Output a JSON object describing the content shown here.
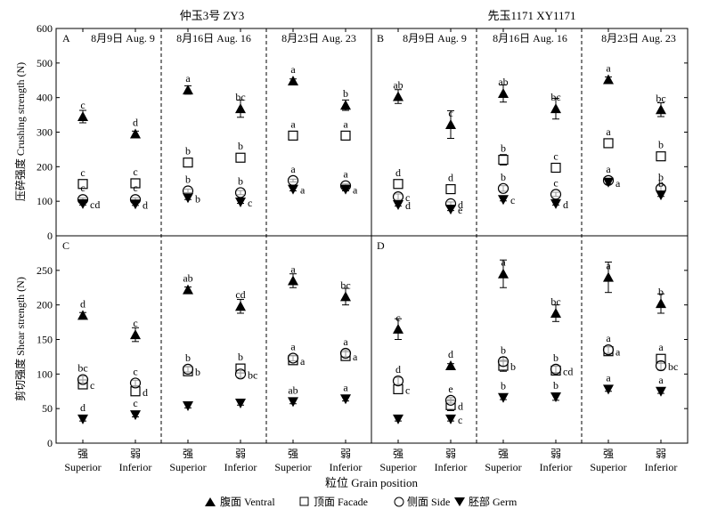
{
  "variety_titles": [
    "仲玉3号 ZY3",
    "先玉1171 XY1171"
  ],
  "date_titles": [
    "8月9日 Aug. 9",
    "8月16日 Aug. 16",
    "8月23日 Aug. 23",
    "8月9日 Aug. 9",
    "8月16日 Aug. 16",
    "8月23日 Aug. 23"
  ],
  "panel_letters": [
    "A",
    "B",
    "C",
    "D"
  ],
  "x_tick_labels": [
    {
      "cn": "强",
      "en": "Superior"
    },
    {
      "cn": "弱",
      "en": "Inferior"
    }
  ],
  "xlabel": "粒位 Grain position",
  "legend": [
    {
      "label": "腹面 Ventral",
      "marker": "triangle-up"
    },
    {
      "label": "顶面 Facade",
      "marker": "square"
    },
    {
      "label": "侧面 Side",
      "marker": "circle"
    },
    {
      "label": "胚部 Germ",
      "marker": "triangle-down"
    }
  ],
  "chart_data": [
    {
      "type": "scatter",
      "ylabel": "压碎强度 Crushing strength (N)",
      "ylim": [
        0,
        600
      ],
      "yticks": [
        0,
        100,
        200,
        300,
        400,
        500,
        600
      ],
      "points": [
        {
          "g": 0,
          "x": 0,
          "s": "v",
          "y": 345,
          "e": 18,
          "l": "c",
          "lp": "above"
        },
        {
          "g": 0,
          "x": 0,
          "s": "f",
          "y": 150,
          "e": 8,
          "l": "c",
          "lp": "above"
        },
        {
          "g": 0,
          "x": 0,
          "s": "s",
          "y": 105,
          "e": 5,
          "l": "c",
          "lp": "above"
        },
        {
          "g": 0,
          "x": 0,
          "s": "g",
          "y": 93,
          "e": 4,
          "l": "cd",
          "lp": "right"
        },
        {
          "g": 0,
          "x": 1,
          "s": "v",
          "y": 295,
          "e": 8,
          "l": "d",
          "lp": "above"
        },
        {
          "g": 0,
          "x": 1,
          "s": "f",
          "y": 152,
          "e": 6,
          "l": "c",
          "lp": "above"
        },
        {
          "g": 0,
          "x": 1,
          "s": "s",
          "y": 105,
          "e": 5,
          "l": "c",
          "lp": "above"
        },
        {
          "g": 0,
          "x": 1,
          "s": "g",
          "y": 92,
          "e": 4,
          "l": "d",
          "lp": "right"
        },
        {
          "g": 1,
          "x": 0,
          "s": "v",
          "y": 422,
          "e": 12,
          "l": "a",
          "lp": "above"
        },
        {
          "g": 1,
          "x": 0,
          "s": "f",
          "y": 212,
          "e": 6,
          "l": "b",
          "lp": "above"
        },
        {
          "g": 1,
          "x": 0,
          "s": "s",
          "y": 130,
          "e": 5,
          "l": "b",
          "lp": "above"
        },
        {
          "g": 1,
          "x": 0,
          "s": "g",
          "y": 110,
          "e": 5,
          "l": "b",
          "lp": "right"
        },
        {
          "g": 1,
          "x": 1,
          "s": "v",
          "y": 368,
          "e": 25,
          "l": "bc",
          "lp": "above"
        },
        {
          "g": 1,
          "x": 1,
          "s": "f",
          "y": 226,
          "e": 6,
          "l": "b",
          "lp": "above"
        },
        {
          "g": 1,
          "x": 1,
          "s": "s",
          "y": 125,
          "e": 6,
          "l": "b",
          "lp": "above"
        },
        {
          "g": 1,
          "x": 1,
          "s": "g",
          "y": 98,
          "e": 4,
          "l": "c",
          "lp": "right"
        },
        {
          "g": 2,
          "x": 0,
          "s": "v",
          "y": 448,
          "e": 6,
          "l": "a",
          "lp": "above"
        },
        {
          "g": 2,
          "x": 0,
          "s": "f",
          "y": 290,
          "e": 10,
          "l": "a",
          "lp": "above"
        },
        {
          "g": 2,
          "x": 0,
          "s": "s",
          "y": 160,
          "e": 4,
          "l": "a",
          "lp": "above"
        },
        {
          "g": 2,
          "x": 0,
          "s": "g",
          "y": 135,
          "e": 5,
          "l": "a",
          "lp": "right"
        },
        {
          "g": 2,
          "x": 1,
          "s": "v",
          "y": 378,
          "e": 15,
          "l": "b",
          "lp": "above"
        },
        {
          "g": 2,
          "x": 1,
          "s": "f",
          "y": 290,
          "e": 8,
          "l": "a",
          "lp": "above"
        },
        {
          "g": 2,
          "x": 1,
          "s": "s",
          "y": 145,
          "e": 5,
          "l": "a",
          "lp": "above"
        },
        {
          "g": 2,
          "x": 1,
          "s": "g",
          "y": 135,
          "e": 5,
          "l": "a",
          "lp": "right"
        },
        {
          "g": 3,
          "x": 0,
          "s": "v",
          "y": 403,
          "e": 20,
          "l": "ab",
          "lp": "above"
        },
        {
          "g": 3,
          "x": 0,
          "s": "f",
          "y": 150,
          "e": 8,
          "l": "d",
          "lp": "above"
        },
        {
          "g": 3,
          "x": 0,
          "s": "s",
          "y": 113,
          "e": 8,
          "l": "c",
          "lp": "right"
        },
        {
          "g": 3,
          "x": 0,
          "s": "g",
          "y": 90,
          "e": 4,
          "l": "d",
          "lp": "right"
        },
        {
          "g": 3,
          "x": 1,
          "s": "v",
          "y": 322,
          "e": 40,
          "l": "c",
          "lp": "above"
        },
        {
          "g": 3,
          "x": 1,
          "s": "f",
          "y": 135,
          "e": 10,
          "l": "d",
          "lp": "above"
        },
        {
          "g": 3,
          "x": 1,
          "s": "s",
          "y": 93,
          "e": 5,
          "l": "d",
          "lp": "right"
        },
        {
          "g": 3,
          "x": 1,
          "s": "g",
          "y": 77,
          "e": 4,
          "l": "e",
          "lp": "right"
        },
        {
          "g": 4,
          "x": 0,
          "s": "v",
          "y": 412,
          "e": 25,
          "l": "ab",
          "lp": "above"
        },
        {
          "g": 4,
          "x": 0,
          "s": "f",
          "y": 220,
          "e": 15,
          "l": "b",
          "lp": "above"
        },
        {
          "g": 4,
          "x": 0,
          "s": "s",
          "y": 137,
          "e": 8,
          "l": "b",
          "lp": "above"
        },
        {
          "g": 4,
          "x": 0,
          "s": "g",
          "y": 105,
          "e": 4,
          "l": "c",
          "lp": "right"
        },
        {
          "g": 4,
          "x": 1,
          "s": "v",
          "y": 368,
          "e": 30,
          "l": "bc",
          "lp": "above"
        },
        {
          "g": 4,
          "x": 1,
          "s": "f",
          "y": 197,
          "e": 6,
          "l": "c",
          "lp": "above"
        },
        {
          "g": 4,
          "x": 1,
          "s": "s",
          "y": 120,
          "e": 6,
          "l": "c",
          "lp": "above"
        },
        {
          "g": 4,
          "x": 1,
          "s": "g",
          "y": 93,
          "e": 4,
          "l": "d",
          "lp": "right"
        },
        {
          "g": 5,
          "x": 0,
          "s": "v",
          "y": 452,
          "e": 8,
          "l": "a",
          "lp": "above"
        },
        {
          "g": 5,
          "x": 0,
          "s": "f",
          "y": 268,
          "e": 10,
          "l": "a",
          "lp": "above"
        },
        {
          "g": 5,
          "x": 0,
          "s": "s",
          "y": 160,
          "e": 5,
          "l": "a",
          "lp": "above"
        },
        {
          "g": 5,
          "x": 0,
          "s": "g",
          "y": 155,
          "e": 5,
          "l": "a",
          "lp": "right"
        },
        {
          "g": 5,
          "x": 1,
          "s": "v",
          "y": 365,
          "e": 20,
          "l": "bc",
          "lp": "above"
        },
        {
          "g": 5,
          "x": 1,
          "s": "f",
          "y": 230,
          "e": 8,
          "l": "b",
          "lp": "above"
        },
        {
          "g": 5,
          "x": 1,
          "s": "s",
          "y": 137,
          "e": 8,
          "l": "b",
          "lp": "above"
        },
        {
          "g": 5,
          "x": 1,
          "s": "g",
          "y": 118,
          "e": 4,
          "l": "b",
          "lp": "above"
        }
      ]
    },
    {
      "type": "scatter",
      "ylabel": "剪切强度 Shear strength (N)",
      "ylim": [
        0,
        300
      ],
      "yticks": [
        0,
        50,
        100,
        150,
        200,
        250,
        300
      ],
      "points": [
        {
          "g": 0,
          "x": 0,
          "s": "v",
          "y": 185,
          "e": 4,
          "l": "d",
          "lp": "above"
        },
        {
          "g": 0,
          "x": 0,
          "s": "f",
          "y": 85,
          "e": 6,
          "l": "c",
          "lp": "right"
        },
        {
          "g": 0,
          "x": 0,
          "s": "s",
          "y": 92,
          "e": 5,
          "l": "bc",
          "lp": "above"
        },
        {
          "g": 0,
          "x": 0,
          "s": "g",
          "y": 35,
          "e": 3,
          "l": "d",
          "lp": "above"
        },
        {
          "g": 0,
          "x": 1,
          "s": "v",
          "y": 157,
          "e": 10,
          "l": "c",
          "lp": "above"
        },
        {
          "g": 0,
          "x": 1,
          "s": "f",
          "y": 75,
          "e": 5,
          "l": "d",
          "lp": "right"
        },
        {
          "g": 0,
          "x": 1,
          "s": "s",
          "y": 87,
          "e": 4,
          "l": "c",
          "lp": "above"
        },
        {
          "g": 0,
          "x": 1,
          "s": "g",
          "y": 41,
          "e": 3,
          "l": "c",
          "lp": "above"
        },
        {
          "g": 1,
          "x": 0,
          "s": "v",
          "y": 222,
          "e": 4,
          "l": "ab",
          "lp": "above"
        },
        {
          "g": 1,
          "x": 0,
          "s": "f",
          "y": 104,
          "e": 4,
          "l": "b",
          "lp": "right"
        },
        {
          "g": 1,
          "x": 0,
          "s": "s",
          "y": 107,
          "e": 4,
          "l": "b",
          "lp": "above"
        },
        {
          "g": 1,
          "x": 0,
          "s": "g",
          "y": 54,
          "e": 3,
          "l": "",
          "lp": "above"
        },
        {
          "g": 1,
          "x": 1,
          "s": "v",
          "y": 198,
          "e": 10,
          "l": "cd",
          "lp": "above"
        },
        {
          "g": 1,
          "x": 1,
          "s": "f",
          "y": 108,
          "e": 5,
          "l": "b",
          "lp": "above"
        },
        {
          "g": 1,
          "x": 1,
          "s": "s",
          "y": 100,
          "e": 5,
          "l": "bc",
          "lp": "right"
        },
        {
          "g": 1,
          "x": 1,
          "s": "g",
          "y": 58,
          "e": 3,
          "l": "",
          "lp": "above"
        },
        {
          "g": 2,
          "x": 0,
          "s": "v",
          "y": 235,
          "e": 10,
          "l": "a",
          "lp": "above"
        },
        {
          "g": 2,
          "x": 0,
          "s": "f",
          "y": 120,
          "e": 4,
          "l": "a",
          "lp": "right"
        },
        {
          "g": 2,
          "x": 0,
          "s": "s",
          "y": 123,
          "e": 4,
          "l": "a",
          "lp": "above"
        },
        {
          "g": 2,
          "x": 0,
          "s": "g",
          "y": 60,
          "e": 3,
          "l": "ab",
          "lp": "above"
        },
        {
          "g": 2,
          "x": 1,
          "s": "v",
          "y": 212,
          "e": 12,
          "l": "bc",
          "lp": "above"
        },
        {
          "g": 2,
          "x": 1,
          "s": "f",
          "y": 126,
          "e": 5,
          "l": "a",
          "lp": "right"
        },
        {
          "g": 2,
          "x": 1,
          "s": "s",
          "y": 130,
          "e": 5,
          "l": "a",
          "lp": "above"
        },
        {
          "g": 2,
          "x": 1,
          "s": "g",
          "y": 64,
          "e": 3,
          "l": "a",
          "lp": "above"
        },
        {
          "g": 3,
          "x": 0,
          "s": "v",
          "y": 165,
          "e": 15,
          "l": "c",
          "lp": "above"
        },
        {
          "g": 3,
          "x": 0,
          "s": "f",
          "y": 78,
          "e": 5,
          "l": "c",
          "lp": "right"
        },
        {
          "g": 3,
          "x": 0,
          "s": "s",
          "y": 90,
          "e": 5,
          "l": "d",
          "lp": "above"
        },
        {
          "g": 3,
          "x": 0,
          "s": "g",
          "y": 35,
          "e": 3,
          "l": "",
          "lp": "above"
        },
        {
          "g": 3,
          "x": 1,
          "s": "v",
          "y": 112,
          "e": 3,
          "l": "d",
          "lp": "above"
        },
        {
          "g": 3,
          "x": 1,
          "s": "f",
          "y": 55,
          "e": 8,
          "l": "d",
          "lp": "right"
        },
        {
          "g": 3,
          "x": 1,
          "s": "s",
          "y": 62,
          "e": 4,
          "l": "e",
          "lp": "above"
        },
        {
          "g": 3,
          "x": 1,
          "s": "g",
          "y": 35,
          "e": 3,
          "l": "c",
          "lp": "right"
        },
        {
          "g": 4,
          "x": 0,
          "s": "v",
          "y": 245,
          "e": 20,
          "l": "a",
          "lp": "above"
        },
        {
          "g": 4,
          "x": 0,
          "s": "f",
          "y": 112,
          "e": 8,
          "l": "b",
          "lp": "right"
        },
        {
          "g": 4,
          "x": 0,
          "s": "s",
          "y": 118,
          "e": 6,
          "l": "b",
          "lp": "above"
        },
        {
          "g": 4,
          "x": 0,
          "s": "g",
          "y": 66,
          "e": 3,
          "l": "b",
          "lp": "above"
        },
        {
          "g": 4,
          "x": 1,
          "s": "v",
          "y": 188,
          "e": 12,
          "l": "bc",
          "lp": "above"
        },
        {
          "g": 4,
          "x": 1,
          "s": "f",
          "y": 105,
          "e": 5,
          "l": "cd",
          "lp": "right"
        },
        {
          "g": 4,
          "x": 1,
          "s": "s",
          "y": 107,
          "e": 5,
          "l": "b",
          "lp": "above"
        },
        {
          "g": 4,
          "x": 1,
          "s": "g",
          "y": 67,
          "e": 5,
          "l": "b",
          "lp": "above"
        },
        {
          "g": 5,
          "x": 0,
          "s": "v",
          "y": 240,
          "e": 22,
          "l": "a",
          "lp": "above"
        },
        {
          "g": 5,
          "x": 0,
          "s": "f",
          "y": 133,
          "e": 6,
          "l": "a",
          "lp": "right"
        },
        {
          "g": 5,
          "x": 0,
          "s": "s",
          "y": 135,
          "e": 5,
          "l": "a",
          "lp": "above"
        },
        {
          "g": 5,
          "x": 0,
          "s": "g",
          "y": 78,
          "e": 3,
          "l": "a",
          "lp": "above"
        },
        {
          "g": 5,
          "x": 1,
          "s": "v",
          "y": 202,
          "e": 14,
          "l": "b",
          "lp": "above"
        },
        {
          "g": 5,
          "x": 1,
          "s": "f",
          "y": 122,
          "e": 6,
          "l": "a",
          "lp": "above"
        },
        {
          "g": 5,
          "x": 1,
          "s": "s",
          "y": 112,
          "e": 6,
          "l": "bc",
          "lp": "right"
        },
        {
          "g": 5,
          "x": 1,
          "s": "g",
          "y": 75,
          "e": 3,
          "l": "a",
          "lp": "above"
        }
      ]
    }
  ]
}
